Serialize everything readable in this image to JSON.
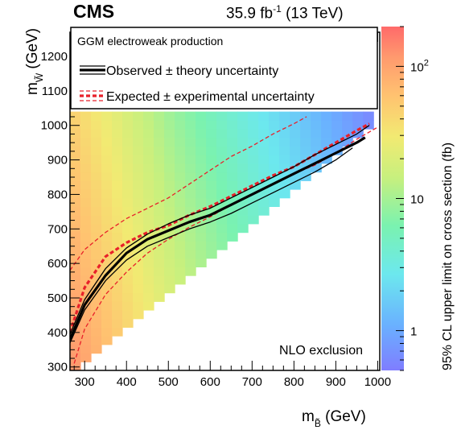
{
  "header": {
    "experiment": "CMS",
    "lumi_value": "35.9 fb",
    "lumi_exp": "-1",
    "energy": "(13 TeV)"
  },
  "legend": {
    "title": "GGM electroweak production",
    "observed": "Observed ± theory uncertainty",
    "expected": "Expected ± experimental uncertainty"
  },
  "annotation": "NLO exclusion",
  "axes": {
    "x_label_main": "m",
    "x_label_sub": "B̃",
    "x_label_unit": " (GeV)",
    "y_label_main": "m",
    "y_label_sub": "W̃",
    "y_label_unit": " (GeV)",
    "z_label": "95% CL upper limit on cross section (fb)"
  },
  "colors": {
    "observed": "#000000",
    "expected": "#e8202a",
    "frame": "#000000"
  },
  "chart_data": {
    "type": "heatmap",
    "xlim": [
      265,
      1005
    ],
    "ylim": [
      290,
      1270
    ],
    "xticks": [
      300,
      400,
      500,
      600,
      700,
      800,
      900,
      1000
    ],
    "yticks": [
      300,
      400,
      500,
      600,
      700,
      800,
      900,
      1000,
      1100,
      1200
    ],
    "zscale": "log",
    "zlim": [
      0.5,
      200
    ],
    "zticks": [
      {
        "value": 1,
        "label": "1"
      },
      {
        "value": 10,
        "label": "10"
      },
      {
        "value": 100,
        "label": "10",
        "exp": "2"
      }
    ],
    "grid_cell": 25,
    "grid_region": {
      "x_start": 265,
      "y_max": 1025,
      "diag_offset_start": 50,
      "diag_offset_end": 40
    },
    "observed": [
      [
        265,
        380
      ],
      [
        300,
        480
      ],
      [
        350,
        565
      ],
      [
        400,
        630
      ],
      [
        450,
        670
      ],
      [
        500,
        695
      ],
      [
        550,
        720
      ],
      [
        600,
        740
      ],
      [
        650,
        770
      ],
      [
        700,
        800
      ],
      [
        750,
        830
      ],
      [
        800,
        860
      ],
      [
        850,
        890
      ],
      [
        900,
        920
      ],
      [
        950,
        950
      ],
      [
        970,
        965
      ]
    ],
    "observed_up": [
      [
        265,
        395
      ],
      [
        300,
        495
      ],
      [
        350,
        585
      ],
      [
        400,
        645
      ],
      [
        450,
        685
      ],
      [
        500,
        715
      ],
      [
        550,
        740
      ],
      [
        600,
        760
      ],
      [
        650,
        790
      ],
      [
        700,
        820
      ],
      [
        750,
        850
      ],
      [
        800,
        880
      ],
      [
        850,
        915
      ],
      [
        900,
        945
      ],
      [
        950,
        975
      ],
      [
        980,
        1000
      ]
    ],
    "observed_down": [
      [
        265,
        370
      ],
      [
        300,
        465
      ],
      [
        350,
        550
      ],
      [
        400,
        610
      ],
      [
        450,
        650
      ],
      [
        500,
        675
      ],
      [
        550,
        700
      ],
      [
        600,
        720
      ],
      [
        650,
        745
      ],
      [
        700,
        775
      ],
      [
        750,
        805
      ],
      [
        800,
        835
      ],
      [
        850,
        865
      ],
      [
        900,
        900
      ],
      [
        940,
        935
      ]
    ],
    "expected": [
      [
        265,
        400
      ],
      [
        300,
        530
      ],
      [
        350,
        620
      ],
      [
        400,
        660
      ],
      [
        450,
        690
      ],
      [
        500,
        710
      ],
      [
        550,
        740
      ],
      [
        600,
        765
      ],
      [
        650,
        795
      ],
      [
        700,
        825
      ],
      [
        750,
        855
      ],
      [
        800,
        880
      ],
      [
        850,
        915
      ],
      [
        900,
        950
      ],
      [
        950,
        985
      ],
      [
        980,
        1005
      ]
    ],
    "expected_up": [
      [
        265,
        580
      ],
      [
        300,
        640
      ],
      [
        350,
        690
      ],
      [
        400,
        730
      ],
      [
        450,
        760
      ],
      [
        500,
        790
      ],
      [
        550,
        830
      ],
      [
        600,
        870
      ],
      [
        650,
        910
      ],
      [
        700,
        940
      ],
      [
        750,
        975
      ],
      [
        800,
        1005
      ],
      [
        830,
        1025
      ]
    ],
    "expected_down": [
      [
        275,
        310
      ],
      [
        300,
        410
      ],
      [
        350,
        510
      ],
      [
        400,
        575
      ],
      [
        450,
        630
      ],
      [
        500,
        670
      ],
      [
        550,
        705
      ],
      [
        600,
        735
      ],
      [
        650,
        770
      ],
      [
        700,
        800
      ],
      [
        750,
        830
      ],
      [
        800,
        860
      ],
      [
        850,
        885
      ],
      [
        900,
        920
      ],
      [
        950,
        960
      ],
      [
        1000,
        995
      ]
    ]
  }
}
